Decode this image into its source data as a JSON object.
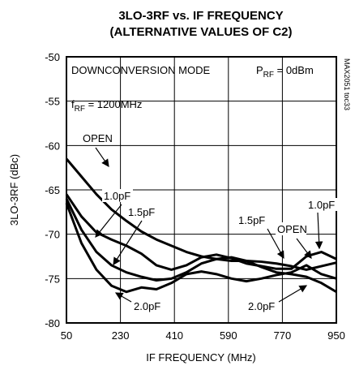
{
  "chart_data": {
    "type": "line",
    "title": [
      "3LO-3RF vs. IF FREQUENCY",
      "(ALTERNATIVE VALUES OF C2)"
    ],
    "xlabel": "IF FREQUENCY (MHz)",
    "ylabel": "3LO-3RF (dBc)",
    "annotations": {
      "mode": "DOWNCONVERSION MODE",
      "prf": [
        "P",
        "RF",
        " = 0dBm"
      ],
      "frf": [
        "f",
        "RF",
        " = 1200MHz"
      ],
      "id": "MAX2051 toc33"
    },
    "x": [
      50,
      100,
      150,
      200,
      250,
      300,
      350,
      400,
      450,
      500,
      550,
      600,
      650,
      700,
      750,
      800,
      850,
      900,
      950
    ],
    "series": [
      {
        "name": "OPEN",
        "color": "#000000",
        "values": [
          -61.5,
          -63.5,
          -65.5,
          -67.2,
          -68.5,
          -69.7,
          -70.6,
          -71.3,
          -72,
          -72.5,
          -72.8,
          -73,
          -73,
          -73.1,
          -73.3,
          -73.6,
          -74,
          -73.6,
          -73.2
        ]
      },
      {
        "name": "1.0pF",
        "color": "#000000",
        "values": [
          -65.5,
          -68,
          -69.8,
          -70.6,
          -71.3,
          -72.2,
          -73.5,
          -74,
          -73.5,
          -72.6,
          -72.3,
          -72.7,
          -73.3,
          -73.6,
          -73.9,
          -73.9,
          -72.5,
          -72,
          -72.8
        ]
      },
      {
        "name": "1.5pF",
        "color": "#000000",
        "values": [
          -66,
          -69.5,
          -72,
          -73.5,
          -74.3,
          -74.8,
          -75.2,
          -75,
          -74.3,
          -73.3,
          -72.8,
          -72.6,
          -73,
          -73.7,
          -74.3,
          -74.5,
          -74.8,
          -75.5,
          -76.5
        ]
      },
      {
        "name": "2.0pF",
        "color": "#000000",
        "values": [
          -66.5,
          -71,
          -74,
          -75.8,
          -76.5,
          -76,
          -76.2,
          -75.5,
          -74.5,
          -74.2,
          -74.5,
          -75,
          -75.3,
          -75,
          -74.6,
          -74.3,
          -73.5,
          -74.5,
          -75
        ]
      }
    ],
    "xlim": [
      50,
      950
    ],
    "xticks": [
      50,
      230,
      410,
      590,
      770,
      950
    ],
    "ylim": [
      -80,
      -50
    ],
    "yticks": [
      -80,
      -75,
      -70,
      -65,
      -60,
      -55,
      -50
    ],
    "grid": true
  }
}
